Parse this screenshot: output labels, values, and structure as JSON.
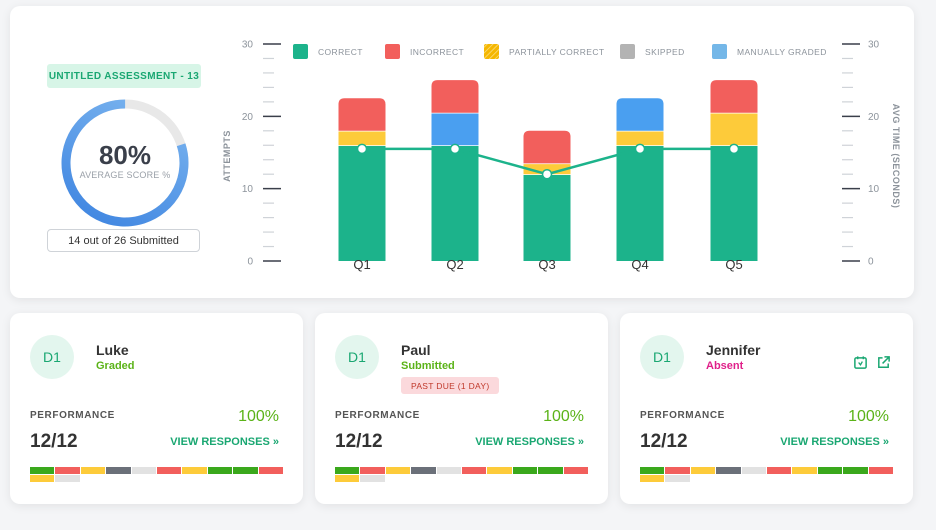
{
  "assessment": {
    "title": "UNTITLED ASSESSMENT - 13",
    "score_percent": "80%",
    "score_label": "AVERAGE SCORE %",
    "score_fraction": 0.8,
    "submitted": "14 out of 26 Submitted"
  },
  "legend": [
    {
      "label": "CORRECT",
      "color": "#1cb38b"
    },
    {
      "label": "INCORRECT",
      "color": "#f25f5c"
    },
    {
      "label": "PARTIALLY CORRECT",
      "color": "#f5b700",
      "hatched": true
    },
    {
      "label": "SKIPPED",
      "color": "#b3b3b3"
    },
    {
      "label": "MANUALLY GRADED",
      "color": "#74b7e8"
    }
  ],
  "chart_data": {
    "type": "bar",
    "stacked": true,
    "categories": [
      "Q1",
      "Q2",
      "Q3",
      "Q4",
      "Q5"
    ],
    "series": [
      {
        "name": "CORRECT",
        "values": [
          16,
          16,
          12,
          16,
          16
        ],
        "color": "#1cb38b"
      },
      {
        "name": "PARTIALLY CORRECT",
        "values": [
          2,
          0,
          1.5,
          2,
          4.5
        ],
        "color": "#fdcb3a"
      },
      {
        "name": "MANUALLY GRADED",
        "values": [
          0,
          4.5,
          0,
          4.5,
          0
        ],
        "color": "#4a9ff0"
      },
      {
        "name": "INCORRECT",
        "values": [
          4.5,
          4.5,
          4.5,
          0,
          4.5
        ],
        "color": "#f25f5c"
      }
    ],
    "line": {
      "values": [
        15.5,
        15.5,
        12,
        15.5,
        15.5
      ],
      "color": "#1cb38b"
    },
    "ylabel": "ATTEMPTS",
    "y2label": "AVG TIME (SECONDS)",
    "ylim": [
      0,
      30
    ],
    "y_ticks": [
      "0",
      "10",
      "20",
      "30"
    ],
    "y2_ticks": [
      "0",
      "10",
      "20",
      "30"
    ],
    "legend_position": "top"
  },
  "colors": {
    "strip": {
      "green": "#3aa81c",
      "red": "#f25f5c",
      "yellow": "#fdcb3a",
      "gray": "#6b7079",
      "light": "#e2e2e2"
    }
  },
  "students": [
    {
      "initials": "D1",
      "name": "Luke",
      "status": "Graded",
      "status_color": "#5bb318",
      "performance_label": "PERFORMANCE",
      "performance_pct": "100%",
      "score": "12/12",
      "view_label": "VIEW RESPONSES »",
      "strip": [
        "green",
        "red",
        "yellow",
        "gray",
        "light",
        "red",
        "yellow",
        "green",
        "green",
        "red",
        "yellow",
        "light"
      ]
    },
    {
      "initials": "D1",
      "name": "Paul",
      "status": "Submitted",
      "status_color": "#5bb318",
      "badge": "PAST DUE (1 DAY)",
      "performance_label": "PERFORMANCE",
      "performance_pct": "100%",
      "score": "12/12",
      "view_label": "VIEW RESPONSES »",
      "strip": [
        "green",
        "red",
        "yellow",
        "gray",
        "light",
        "red",
        "yellow",
        "green",
        "green",
        "red",
        "yellow",
        "light"
      ]
    },
    {
      "initials": "D1",
      "name": "Jennifer",
      "status": "Absent",
      "status_color": "#e0208a",
      "icons": [
        "calendar-icon",
        "external-link-icon"
      ],
      "performance_label": "PERFORMANCE",
      "performance_pct": "100%",
      "score": "12/12",
      "view_label": "VIEW RESPONSES »",
      "strip": [
        "green",
        "red",
        "yellow",
        "gray",
        "light",
        "red",
        "yellow",
        "green",
        "green",
        "red",
        "yellow",
        "light"
      ]
    }
  ]
}
